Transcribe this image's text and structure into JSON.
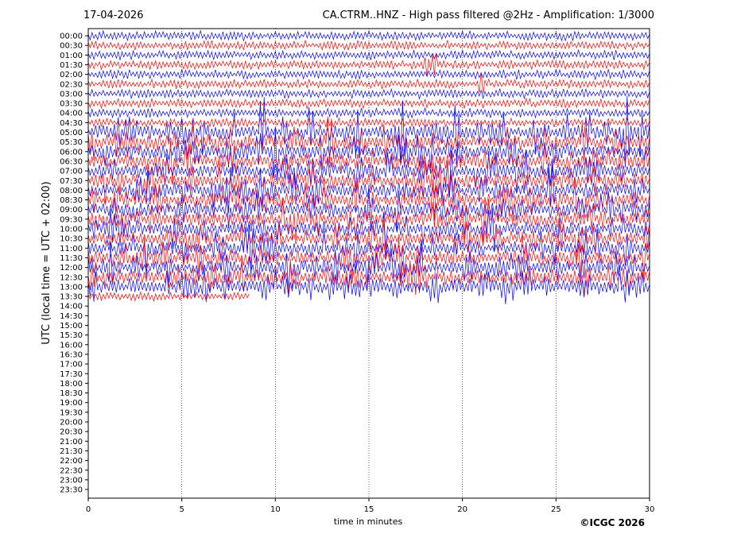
{
  "header": {
    "date": "17-04-2026",
    "title": "CA.CTRM..HNZ - High pass filtered @2Hz - Amplification: 1/3000"
  },
  "footer": {
    "copyright": "©ICGC 2026"
  },
  "chart_data": {
    "type": "line",
    "subtype": "helicorder",
    "xlabel": "time in minutes",
    "ylabel": "UTC (local time = UTC + 02:00)",
    "xlim": [
      0,
      30
    ],
    "x_ticks": [
      0,
      5,
      10,
      15,
      20,
      25,
      30
    ],
    "y_tick_labels": [
      "00:00",
      "00:30",
      "01:00",
      "01:30",
      "02:00",
      "02:30",
      "03:00",
      "03:30",
      "04:00",
      "04:30",
      "05:00",
      "05:30",
      "06:00",
      "06:30",
      "07:00",
      "07:30",
      "08:00",
      "08:30",
      "09:00",
      "09:30",
      "10:00",
      "10:30",
      "11:00",
      "11:30",
      "12:00",
      "12:30",
      "13:00",
      "13:30",
      "14:00",
      "14:30",
      "15:00",
      "15:30",
      "16:00",
      "16:30",
      "17:00",
      "17:30",
      "18:00",
      "18:30",
      "19:00",
      "19:30",
      "20:00",
      "20:30",
      "21:00",
      "21:30",
      "22:00",
      "22:30",
      "23:00",
      "23:30"
    ],
    "grid": {
      "x": true,
      "y": false,
      "style": "dotted"
    },
    "series_colors": [
      "#0000ff",
      "#ff0000"
    ],
    "trace_count": 28,
    "last_trace_end_minute": 8.6,
    "events": [
      {
        "trace": 1,
        "minute": 3.0,
        "amp": 0.3
      },
      {
        "trace": 6,
        "minute": 3.9,
        "amp": 0.5
      },
      {
        "trace": 3,
        "minute": 18.1,
        "amp": 2.4
      },
      {
        "trace": 3,
        "minute": 18.5,
        "amp": 2.4
      },
      {
        "trace": 3,
        "minute": 18.2,
        "amp": 2.6
      },
      {
        "trace": 5,
        "minute": 21.0,
        "amp": 3.5
      },
      {
        "trace": 10,
        "minute": 9.3,
        "amp": 8.5
      },
      {
        "trace": 10,
        "minute": 11.9,
        "amp": 6.0
      },
      {
        "trace": 10,
        "minute": 14.4,
        "amp": 5.0
      },
      {
        "trace": 10,
        "minute": 16.8,
        "amp": 6.5
      },
      {
        "trace": 10,
        "minute": 19.7,
        "amp": 6.5
      },
      {
        "trace": 10,
        "minute": 28.8,
        "amp": 7.5
      },
      {
        "trace": 20,
        "minute": 6.2,
        "amp": 2.2
      },
      {
        "trace": 20,
        "minute": 9.3,
        "amp": 2.5
      },
      {
        "trace": 22,
        "minute": 9.3,
        "amp": 2.4
      },
      {
        "trace": 25,
        "minute": 9.3,
        "amp": 1.4
      },
      {
        "trace": 26,
        "minute": 11.9,
        "amp": 2.8
      },
      {
        "trace": 25,
        "minute": 28.8,
        "amp": 3.0
      },
      {
        "trace": 26,
        "minute": 19.7,
        "amp": 2.2
      },
      {
        "trace": 24,
        "minute": 16.8,
        "amp": 2.8
      }
    ],
    "active_period": {
      "first_trace": 10,
      "last_trace": 26
    }
  }
}
